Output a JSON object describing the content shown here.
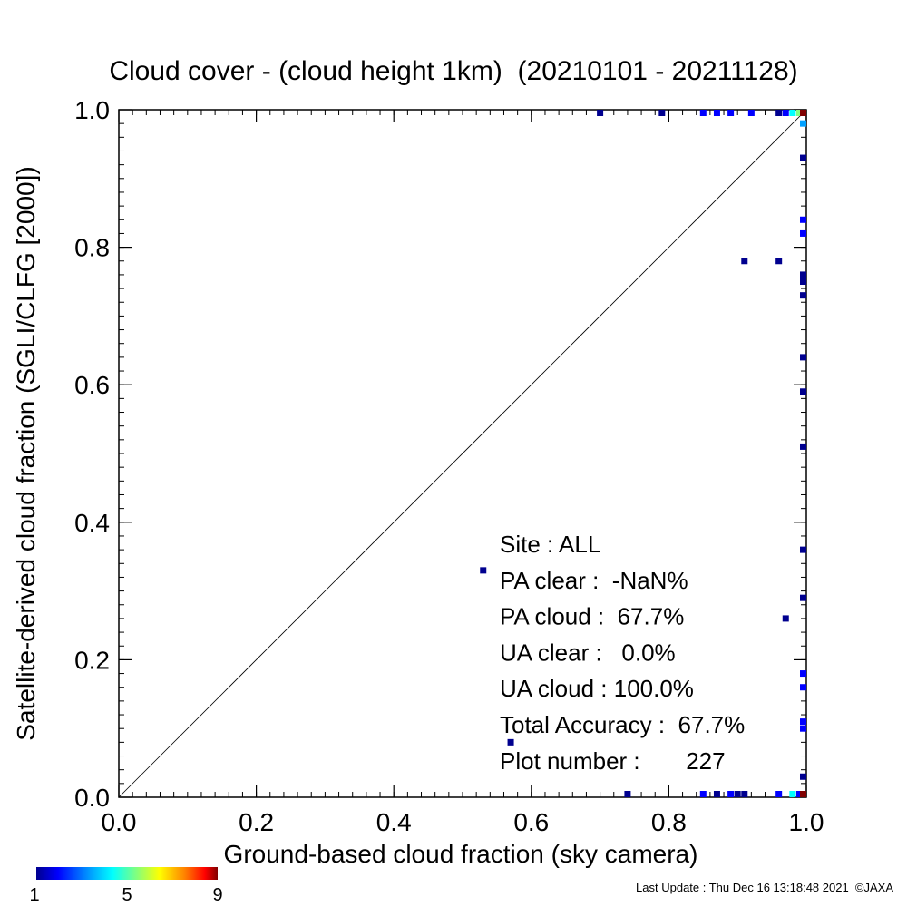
{
  "chart_data": {
    "type": "scatter",
    "title": "Cloud cover - (cloud height 1km)  (20210101 - 20211128)",
    "xlabel": "Ground-based cloud fraction (sky camera)",
    "ylabel": "Satellite-derived cloud fraction (SGLI/CLFG [2000])",
    "xlim": [
      0.0,
      1.0
    ],
    "ylim": [
      0.0,
      1.0
    ],
    "x_ticks": [
      "0.0",
      "0.2",
      "0.4",
      "0.6",
      "0.8",
      "1.0"
    ],
    "y_ticks": [
      "0.0",
      "0.2",
      "0.4",
      "0.6",
      "0.8",
      "1.0"
    ],
    "reference_line": "y = x",
    "grid": false,
    "color_scale": {
      "min_label": "1",
      "mid_label": "5",
      "max_label": "9",
      "colormap": [
        "#00008f",
        "#0000ff",
        "#00a0ff",
        "#00ffff",
        "#80ff80",
        "#ffff00",
        "#ff8000",
        "#ff0000",
        "#800000"
      ]
    },
    "points": [
      {
        "x": 0.7,
        "y": 1.0,
        "count": 1
      },
      {
        "x": 0.79,
        "y": 1.0,
        "count": 1
      },
      {
        "x": 0.85,
        "y": 1.0,
        "count": 2
      },
      {
        "x": 0.87,
        "y": 1.0,
        "count": 2
      },
      {
        "x": 0.89,
        "y": 1.0,
        "count": 2
      },
      {
        "x": 0.92,
        "y": 1.0,
        "count": 2
      },
      {
        "x": 0.96,
        "y": 1.0,
        "count": 1
      },
      {
        "x": 0.97,
        "y": 1.0,
        "count": 2
      },
      {
        "x": 0.98,
        "y": 1.0,
        "count": 4
      },
      {
        "x": 0.99,
        "y": 1.0,
        "count": 5
      },
      {
        "x": 1.0,
        "y": 1.0,
        "count": 9
      },
      {
        "x": 1.0,
        "y": 0.98,
        "count": 3
      },
      {
        "x": 1.0,
        "y": 0.93,
        "count": 1
      },
      {
        "x": 1.0,
        "y": 0.84,
        "count": 2
      },
      {
        "x": 1.0,
        "y": 0.82,
        "count": 2
      },
      {
        "x": 0.91,
        "y": 0.78,
        "count": 1
      },
      {
        "x": 0.96,
        "y": 0.78,
        "count": 1
      },
      {
        "x": 1.0,
        "y": 0.76,
        "count": 1
      },
      {
        "x": 1.0,
        "y": 0.75,
        "count": 1
      },
      {
        "x": 1.0,
        "y": 0.73,
        "count": 1
      },
      {
        "x": 1.0,
        "y": 0.64,
        "count": 1
      },
      {
        "x": 1.0,
        "y": 0.59,
        "count": 1
      },
      {
        "x": 1.0,
        "y": 0.51,
        "count": 1
      },
      {
        "x": 1.0,
        "y": 0.36,
        "count": 1
      },
      {
        "x": 0.53,
        "y": 0.33,
        "count": 1
      },
      {
        "x": 1.0,
        "y": 0.29,
        "count": 1
      },
      {
        "x": 0.97,
        "y": 0.26,
        "count": 1
      },
      {
        "x": 1.0,
        "y": 0.18,
        "count": 2
      },
      {
        "x": 1.0,
        "y": 0.16,
        "count": 2
      },
      {
        "x": 1.0,
        "y": 0.11,
        "count": 2
      },
      {
        "x": 1.0,
        "y": 0.1,
        "count": 2
      },
      {
        "x": 0.57,
        "y": 0.08,
        "count": 1
      },
      {
        "x": 1.0,
        "y": 0.03,
        "count": 1
      },
      {
        "x": 0.74,
        "y": 0.0,
        "count": 1
      },
      {
        "x": 0.85,
        "y": 0.0,
        "count": 2
      },
      {
        "x": 0.87,
        "y": 0.0,
        "count": 1
      },
      {
        "x": 0.89,
        "y": 0.0,
        "count": 2
      },
      {
        "x": 0.9,
        "y": 0.0,
        "count": 1
      },
      {
        "x": 0.91,
        "y": 0.0,
        "count": 1
      },
      {
        "x": 0.96,
        "y": 0.0,
        "count": 2
      },
      {
        "x": 0.98,
        "y": 0.0,
        "count": 4
      },
      {
        "x": 0.99,
        "y": 0.0,
        "count": 2
      },
      {
        "x": 1.0,
        "y": 0.0,
        "count": 9
      }
    ],
    "stats": [
      "Site : ALL",
      "PA clear :  -NaN%",
      "PA cloud :  67.7%",
      "UA clear :   0.0%",
      "UA cloud : 100.0%",
      "Total Accuracy :  67.7%",
      "Plot number :       227"
    ]
  },
  "footer": {
    "last_update": "Last Update : Thu Dec 16 13:18:48 2021  ©JAXA"
  }
}
